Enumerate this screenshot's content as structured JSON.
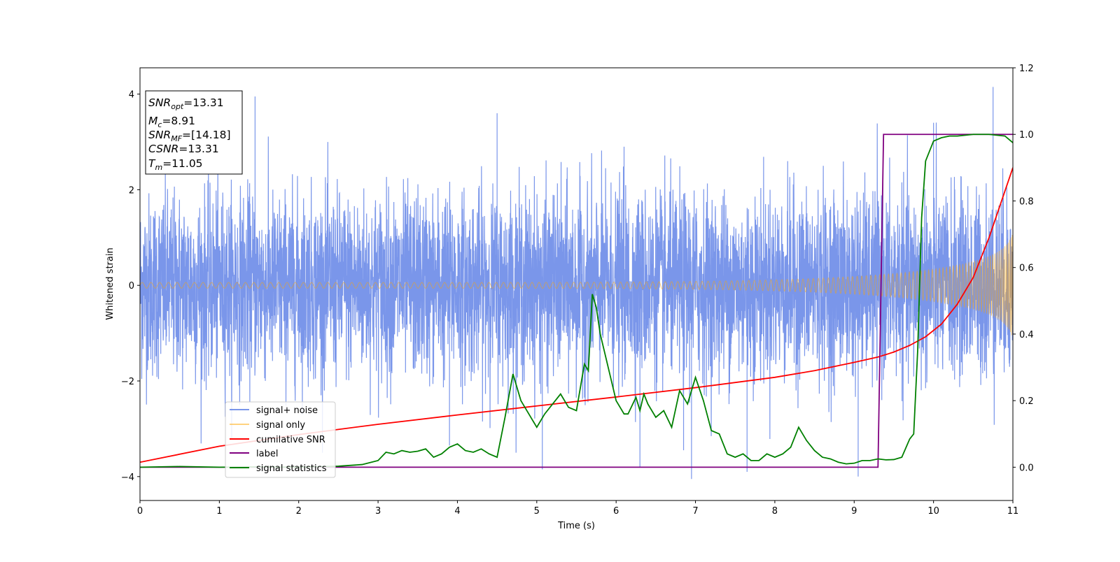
{
  "chart_data": {
    "type": "line",
    "xlabel": "Time (s)",
    "ylabel": "Whitened strain",
    "xlim": [
      0,
      11
    ],
    "ylim": [
      -4.5,
      4.55
    ],
    "y2lim": [
      -0.1,
      1.2
    ],
    "xticks": [
      "0",
      "1",
      "2",
      "3",
      "4",
      "5",
      "6",
      "7",
      "8",
      "9",
      "10",
      "11"
    ],
    "yticks": [
      "−4",
      "−2",
      "0",
      "2",
      "4"
    ],
    "y2ticks": [
      "0.0",
      "0.2",
      "0.4",
      "0.6",
      "0.8",
      "1.0",
      "1.2"
    ],
    "grid": false,
    "legend_position": "lower-left",
    "info_box": {
      "snr_opt": {
        "var": "SNR",
        "sub": "opt",
        "value": "=13.31"
      },
      "mc": {
        "var": "M",
        "sub": "c",
        "value": "=8.91"
      },
      "snr_mf": {
        "var": "SNR",
        "sub": "MF",
        "value": "=[14.18]"
      },
      "csnr": {
        "var": "CSNR",
        "sub": "",
        "value": "=13.31"
      },
      "tm": {
        "var": "T",
        "sub": "m",
        "value": "=11.05"
      }
    },
    "series": [
      {
        "name": "signal+ noise",
        "color": "#4169e1",
        "axis": "left",
        "kind": "noise",
        "sigma": 0.95,
        "peaks": [
          [
            1.45,
            3.95
          ],
          [
            4.5,
            3.6
          ],
          [
            10.0,
            3.4
          ],
          [
            10.75,
            4.15
          ],
          [
            6.1,
            2.9
          ],
          [
            6.95,
            -4.05
          ],
          [
            9.05,
            -4.0
          ],
          [
            7.65,
            -3.9
          ],
          [
            5.07,
            -3.85
          ],
          [
            6.3,
            -3.8
          ],
          [
            3.9,
            -3.35
          ],
          [
            6.85,
            -3.45
          ]
        ]
      },
      {
        "name": "signal only",
        "color": "#ffa500",
        "axis": "left",
        "kind": "chirp",
        "amp_start": 0.06,
        "amp_end": 0.95,
        "t_merge": 11.05
      },
      {
        "name": "cumilative SNR",
        "color": "#ff0000",
        "axis": "right",
        "x": [
          0,
          1,
          2,
          3,
          4,
          5,
          6,
          7,
          8,
          8.5,
          9,
          9.3,
          9.5,
          9.7,
          9.9,
          10.1,
          10.3,
          10.5,
          10.7,
          10.9,
          11
        ],
        "y": [
          0.015,
          0.063,
          0.098,
          0.129,
          0.157,
          0.184,
          0.211,
          0.239,
          0.27,
          0.29,
          0.315,
          0.331,
          0.346,
          0.366,
          0.392,
          0.43,
          0.49,
          0.57,
          0.69,
          0.83,
          0.9
        ]
      },
      {
        "name": "label",
        "color": "#800080",
        "axis": "right",
        "x": [
          0,
          9.3,
          9.37,
          11
        ],
        "y": [
          0,
          0,
          1,
          1
        ]
      },
      {
        "name": "signal statistics",
        "color": "#008000",
        "axis": "right",
        "x": [
          0,
          0.5,
          1.0,
          1.5,
          2.0,
          2.5,
          2.8,
          3.0,
          3.1,
          3.2,
          3.3,
          3.4,
          3.5,
          3.6,
          3.7,
          3.8,
          3.9,
          4.0,
          4.1,
          4.2,
          4.3,
          4.4,
          4.5,
          4.6,
          4.7,
          4.8,
          4.9,
          5.0,
          5.1,
          5.2,
          5.3,
          5.4,
          5.5,
          5.6,
          5.65,
          5.7,
          5.75,
          5.8,
          5.9,
          6.0,
          6.1,
          6.15,
          6.25,
          6.3,
          6.35,
          6.4,
          6.5,
          6.6,
          6.7,
          6.8,
          6.9,
          7.0,
          7.1,
          7.2,
          7.3,
          7.4,
          7.5,
          7.6,
          7.7,
          7.8,
          7.9,
          8.0,
          8.1,
          8.2,
          8.3,
          8.4,
          8.5,
          8.6,
          8.7,
          8.8,
          8.9,
          9.0,
          9.1,
          9.2,
          9.3,
          9.4,
          9.5,
          9.6,
          9.7,
          9.75,
          9.8,
          9.85,
          9.9,
          10.0,
          10.1,
          10.2,
          10.3,
          10.5,
          10.7,
          10.9,
          11.0
        ],
        "y": [
          0,
          0.002,
          0,
          0.001,
          0,
          0.003,
          0.008,
          0.02,
          0.045,
          0.04,
          0.05,
          0.045,
          0.048,
          0.055,
          0.03,
          0.04,
          0.06,
          0.07,
          0.05,
          0.045,
          0.055,
          0.04,
          0.03,
          0.15,
          0.28,
          0.2,
          0.16,
          0.12,
          0.16,
          0.19,
          0.22,
          0.18,
          0.17,
          0.31,
          0.29,
          0.52,
          0.48,
          0.4,
          0.3,
          0.2,
          0.16,
          0.16,
          0.21,
          0.17,
          0.22,
          0.19,
          0.15,
          0.17,
          0.12,
          0.23,
          0.19,
          0.27,
          0.2,
          0.11,
          0.1,
          0.04,
          0.03,
          0.04,
          0.02,
          0.02,
          0.04,
          0.03,
          0.04,
          0.06,
          0.12,
          0.08,
          0.05,
          0.03,
          0.025,
          0.015,
          0.01,
          0.012,
          0.02,
          0.02,
          0.025,
          0.022,
          0.023,
          0.03,
          0.085,
          0.1,
          0.35,
          0.75,
          0.92,
          0.98,
          0.99,
          0.995,
          0.995,
          1.0,
          1.0,
          0.995,
          0.975
        ]
      }
    ]
  }
}
